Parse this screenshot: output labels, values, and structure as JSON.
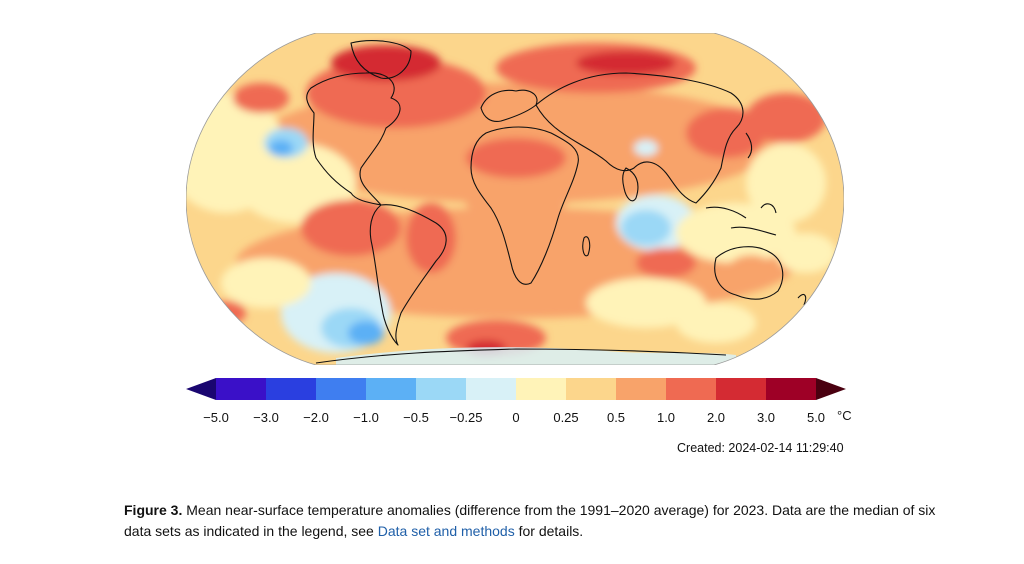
{
  "legend": {
    "colors": [
      "#3a10c8",
      "#2a3fe0",
      "#3f7ef0",
      "#5cb0f5",
      "#9bd8f6",
      "#d8f1f7",
      "#fff3b8",
      "#fcd68c",
      "#f8a36a",
      "#ef6a52",
      "#d42b33",
      "#9e0026"
    ],
    "tip_left_color": "#1a0670",
    "tip_right_color": "#4a0010",
    "ticks": [
      "−5.0",
      "−3.0",
      "−2.0",
      "−1.0",
      "−0.5",
      "−0.25",
      "0",
      "0.25",
      "0.5",
      "1.0",
      "2.0",
      "3.0",
      "5.0"
    ],
    "unit": "°C"
  },
  "created": "Created: 2024-02-14  11:29:40",
  "caption": {
    "label": "Figure 3.",
    "text": " Mean near-surface temperature anomalies (difference from the 1991–2020 average) for 2023. Data are the median of six data sets as indicated in the legend, see ",
    "link": "Data set and methods",
    "suffix": " for details."
  },
  "map": {
    "ocean_base_color": "#fcd68c",
    "coastline_color": "#111111"
  }
}
